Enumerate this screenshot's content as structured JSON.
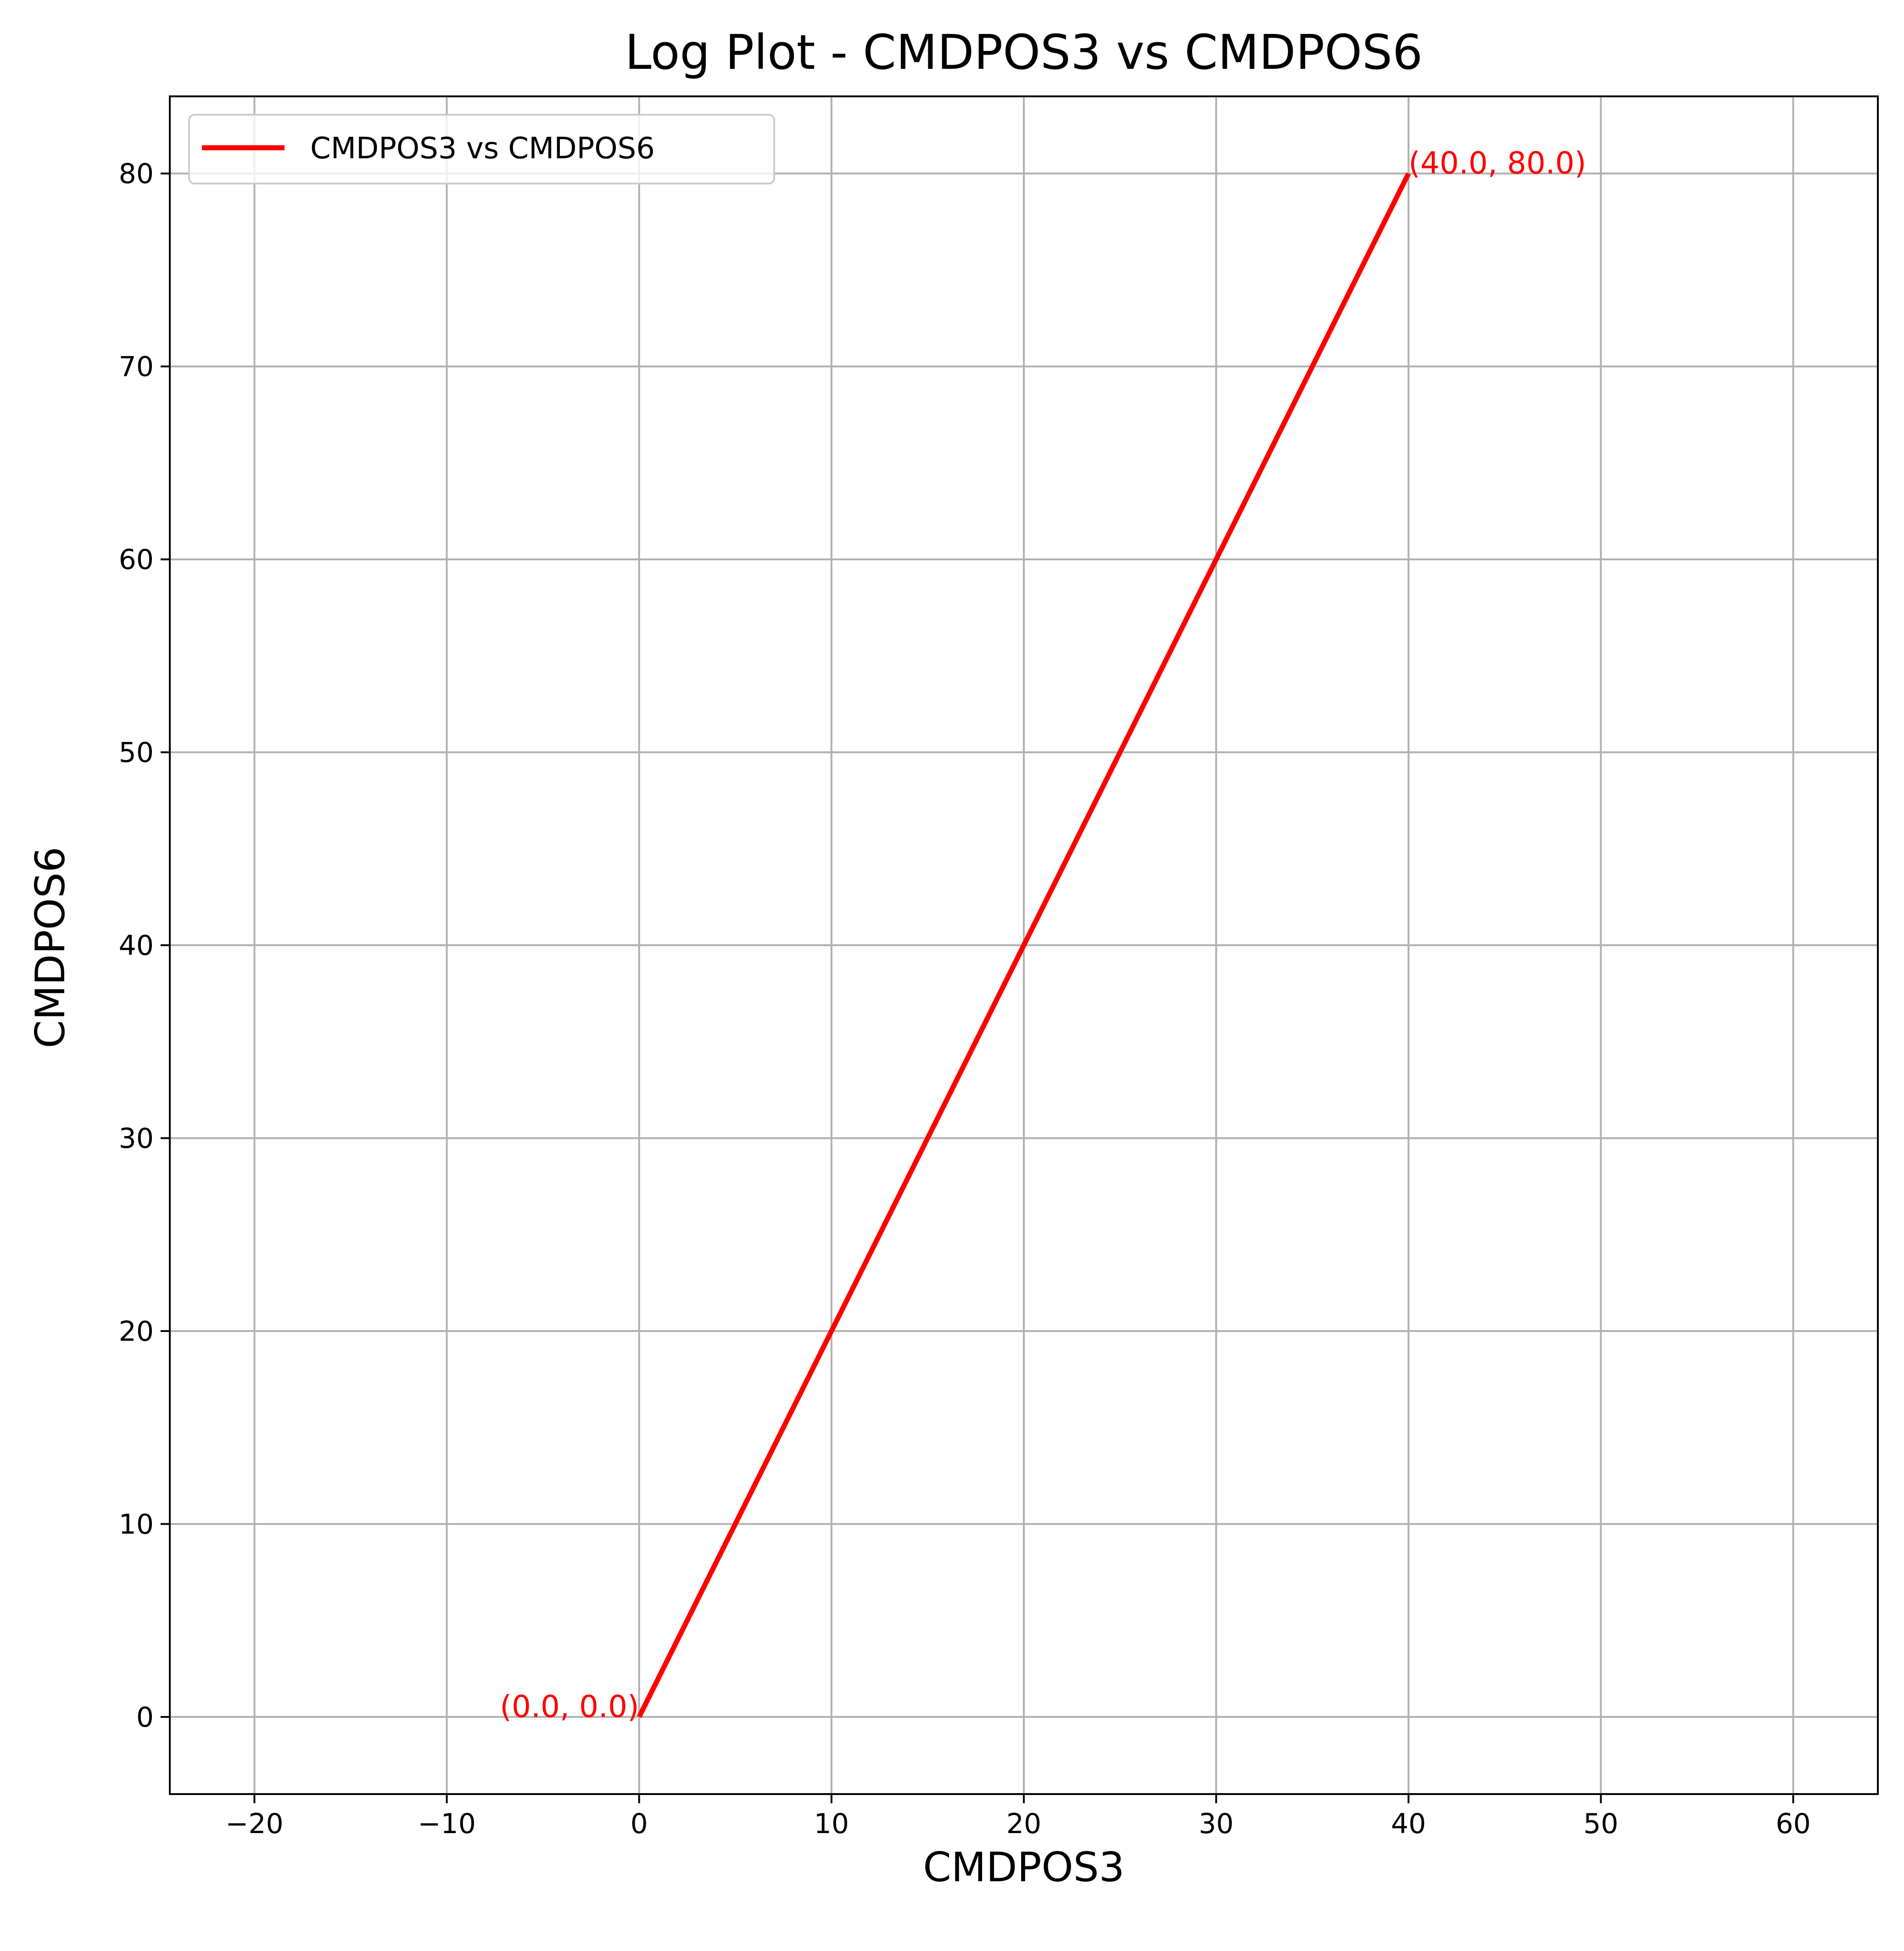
{
  "chart_data": {
    "type": "line",
    "title": "Log Plot - CMDPOS3 vs CMDPOS6",
    "xlabel": "CMDPOS3",
    "ylabel": "CMDPOS6",
    "xlim": [
      -24.4,
      64.4
    ],
    "ylim": [
      -4,
      84
    ],
    "xticks": [
      -20,
      -10,
      0,
      10,
      20,
      30,
      40,
      50,
      60
    ],
    "xtick_labels": [
      "−20",
      "−10",
      "0",
      "10",
      "20",
      "30",
      "40",
      "50",
      "60"
    ],
    "yticks": [
      0,
      10,
      20,
      30,
      40,
      50,
      60,
      70,
      80
    ],
    "ytick_labels": [
      "0",
      "10",
      "20",
      "30",
      "40",
      "50",
      "60",
      "70",
      "80"
    ],
    "grid": true,
    "legend": {
      "position": "upper-left",
      "entries": [
        "CMDPOS3 vs CMDPOS6"
      ]
    },
    "series": [
      {
        "name": "CMDPOS3 vs CMDPOS6",
        "color": "#ff0000",
        "x": [
          0.0,
          40.0
        ],
        "y": [
          0.0,
          80.0
        ]
      }
    ],
    "annotations": [
      {
        "text": "(0.0, 0.0)",
        "x": 0.0,
        "y": 0.0,
        "anchor": "end",
        "color": "#ff0000"
      },
      {
        "text": "(40.0, 80.0)",
        "x": 40.0,
        "y": 80.0,
        "anchor": "start",
        "color": "#ff0000"
      }
    ]
  }
}
